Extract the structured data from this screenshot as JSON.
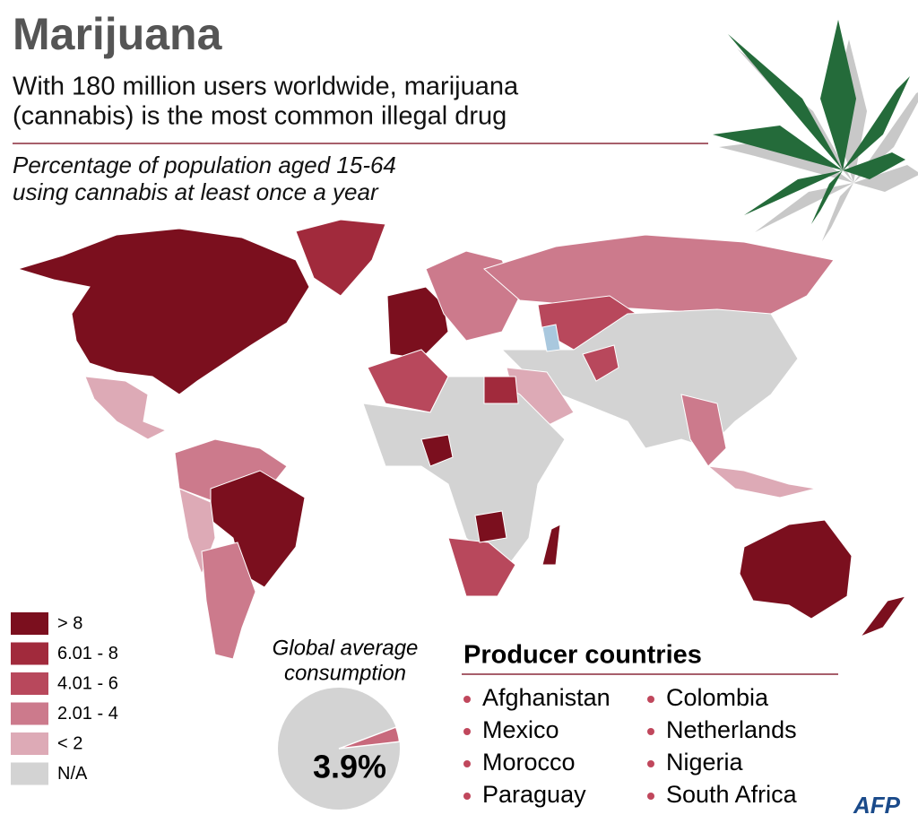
{
  "header": {
    "title": "Marijuana",
    "subtitle_lines": [
      "With 180 million users worldwide, marijuana",
      "(cannabis) is the most common illegal drug"
    ],
    "note_lines": [
      "Percentage of population aged 15-64",
      "using cannabis at least once a year"
    ]
  },
  "legend": [
    {
      "label": "> 8",
      "color": "#7b0f1e"
    },
    {
      "label": "6.01 - 8",
      "color": "#a12a3c"
    },
    {
      "label": "4.01 - 6",
      "color": "#b8485c"
    },
    {
      "label": "2.01 - 4",
      "color": "#cc7a8c"
    },
    {
      "label": "< 2",
      "color": "#ddaab6"
    },
    {
      "label": "N/A",
      "color": "#d3d3d3"
    }
  ],
  "chart_data": {
    "type": "pie",
    "title_lines": [
      "Global average",
      "consumption"
    ],
    "values": [
      3.9
    ],
    "value_labels": [
      "3.9%"
    ],
    "color": "#c8697c",
    "rest_color": "#d3d3d3"
  },
  "producers": {
    "title": "Producer countries",
    "items": [
      "Afghanistan",
      "Mexico",
      "Morocco",
      "Paraguay",
      "Colombia",
      "Netherlands",
      "Nigeria",
      "South Africa"
    ]
  },
  "credit": "AFP"
}
